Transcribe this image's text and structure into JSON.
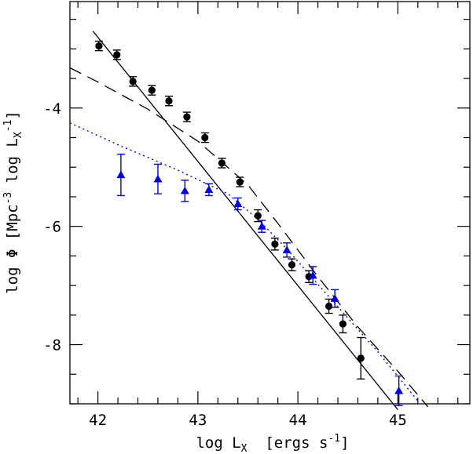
{
  "chart_data": {
    "type": "scatter",
    "title": "",
    "xlabel": "log L_X  [ergs s^-1]",
    "ylabel": "log Φ [Mpc^-3 log L_X^-1]",
    "xlim": [
      41.72,
      45.72
    ],
    "ylim": [
      -9.0,
      -2.2
    ],
    "xticks": [
      42,
      43,
      44,
      45
    ],
    "xtick_labels": [
      "42",
      "43",
      "44",
      "45"
    ],
    "yticks": [
      -4,
      -6,
      -8
    ],
    "ytick_labels": [
      "-4",
      "-6",
      "-8"
    ],
    "grid": false,
    "series": [
      {
        "marker": "circle",
        "color": "#000000",
        "x": [
          42.01,
          42.19,
          42.35,
          42.54,
          42.71,
          42.89,
          43.07,
          43.24,
          43.42,
          43.6,
          43.77,
          43.94,
          44.11,
          44.31,
          44.45,
          44.63
        ],
        "y": [
          -2.95,
          -3.1,
          -3.55,
          -3.7,
          -3.88,
          -4.15,
          -4.5,
          -4.93,
          -5.25,
          -5.82,
          -6.3,
          -6.65,
          -6.85,
          -7.35,
          -7.65,
          -8.23
        ],
        "err": [
          0.08,
          0.08,
          0.08,
          0.08,
          0.08,
          0.08,
          0.08,
          0.08,
          0.08,
          0.1,
          0.1,
          0.1,
          0.1,
          0.12,
          0.15,
          0.35
        ]
      },
      {
        "marker": "triangle",
        "color": "#0000dd",
        "x": [
          42.23,
          42.6,
          42.87,
          43.11,
          43.4,
          43.64,
          43.89,
          44.15,
          44.37,
          45.01
        ],
        "y": [
          -5.13,
          -5.2,
          -5.4,
          -5.38,
          -5.62,
          -6.0,
          -6.4,
          -6.83,
          -7.22,
          -8.78
        ],
        "err": [
          0.35,
          0.25,
          0.18,
          0.1,
          0.1,
          0.1,
          0.12,
          0.15,
          0.15,
          0.25
        ]
      }
    ],
    "curves": [
      {
        "style": "solid",
        "color": "#000000",
        "x": [
          41.95,
          45.0
        ],
        "y": [
          -2.7,
          -9.1
        ]
      },
      {
        "style": "dashed",
        "color": "#000000",
        "x": [
          41.72,
          42.0,
          42.5,
          43.0,
          43.5,
          43.8,
          44.2,
          44.6,
          45.0,
          45.3
        ],
        "y": [
          -3.32,
          -3.56,
          -4.02,
          -4.56,
          -5.3,
          -5.95,
          -6.85,
          -7.7,
          -8.45,
          -9.05
        ]
      },
      {
        "style": "dotted",
        "color": "#0000dd",
        "x": [
          41.72,
          42.2,
          42.8,
          43.3,
          43.6,
          43.9,
          44.2,
          44.5,
          44.8,
          45.2
        ],
        "y": [
          -4.25,
          -4.62,
          -5.05,
          -5.45,
          -5.88,
          -6.4,
          -6.98,
          -7.55,
          -8.12,
          -8.95
        ]
      }
    ]
  }
}
